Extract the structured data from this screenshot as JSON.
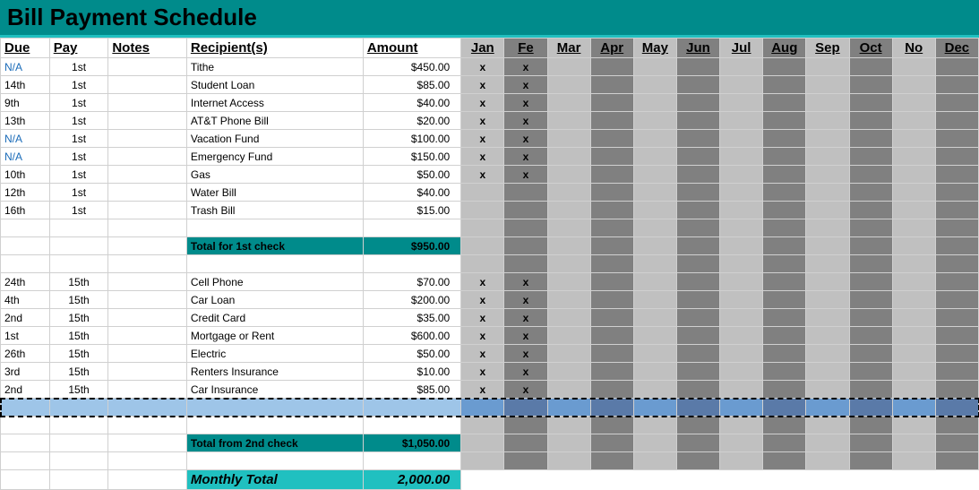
{
  "title": "Bill Payment Schedule",
  "colors": {
    "header_bg": "#008b8b",
    "header_accent": "#20c0c0",
    "month_light": "#c0c0c0",
    "month_dark": "#808080",
    "selected_left": "#9ec5e8",
    "selected_mon_light": "#6a9bd0",
    "selected_mon_dark": "#5a7aa8",
    "na_color": "#1a6bb8",
    "grand_bg": "#20c0c0"
  },
  "columns": {
    "due": "Due",
    "pay": "Pay",
    "notes": "Notes",
    "recipients": "Recipient(s)",
    "amount": "Amount"
  },
  "months": [
    "Jan",
    "Fe",
    "Mar",
    "Apr",
    "May",
    "Jun",
    "Jul",
    "Aug",
    "Sep",
    "Oct",
    "No",
    "Dec"
  ],
  "month_dark_idx": [
    1,
    3,
    5,
    7,
    9,
    11
  ],
  "rows_a": [
    {
      "due": "N/A",
      "na": true,
      "pay": "1st",
      "recip": "Tithe",
      "amt": "$450.00",
      "m": [
        "x",
        "x"
      ]
    },
    {
      "due": "14th",
      "pay": "1st",
      "recip": "Student Loan",
      "amt": "$85.00",
      "m": [
        "x",
        "x"
      ]
    },
    {
      "due": "9th",
      "pay": "1st",
      "recip": "Internet Access",
      "amt": "$40.00",
      "m": [
        "x",
        "x"
      ]
    },
    {
      "due": "13th",
      "pay": "1st",
      "recip": "AT&T Phone Bill",
      "amt": "$20.00",
      "m": [
        "x",
        "x"
      ]
    },
    {
      "due": "N/A",
      "na": true,
      "pay": "1st",
      "recip": "Vacation Fund",
      "amt": "$100.00",
      "m": [
        "x",
        "x"
      ]
    },
    {
      "due": "N/A",
      "na": true,
      "pay": "1st",
      "recip": "Emergency Fund",
      "amt": "$150.00",
      "m": [
        "x",
        "x"
      ]
    },
    {
      "due": "10th",
      "pay": "1st",
      "recip": "Gas",
      "amt": "$50.00",
      "m": [
        "x",
        "x"
      ]
    },
    {
      "due": "12th",
      "pay": "1st",
      "recip": "Water Bill",
      "amt": "$40.00",
      "m": [
        "",
        ""
      ]
    },
    {
      "due": "16th",
      "pay": "1st",
      "recip": "Trash Bill",
      "amt": "$15.00",
      "m": [
        "",
        ""
      ]
    }
  ],
  "subtotal_a": {
    "label": "Total for 1st check",
    "amt": "$950.00"
  },
  "rows_b": [
    {
      "due": "24th",
      "pay": "15th",
      "recip": "Cell Phone",
      "amt": "$70.00",
      "m": [
        "x",
        "x"
      ]
    },
    {
      "due": "4th",
      "pay": "15th",
      "recip": "Car Loan",
      "amt": "$200.00",
      "m": [
        "x",
        "x"
      ]
    },
    {
      "due": "2nd",
      "pay": "15th",
      "recip": "Credit Card",
      "amt": "$35.00",
      "m": [
        "x",
        "x"
      ]
    },
    {
      "due": "1st",
      "pay": "15th",
      "recip": "Mortgage or Rent",
      "amt": "$600.00",
      "m": [
        "x",
        "x"
      ]
    },
    {
      "due": "26th",
      "pay": "15th",
      "recip": "Electric",
      "amt": "$50.00",
      "m": [
        "x",
        "x"
      ]
    },
    {
      "due": "3rd",
      "pay": "15th",
      "recip": "Renters Insurance",
      "amt": "$10.00",
      "m": [
        "x",
        "x"
      ]
    },
    {
      "due": "2nd",
      "pay": "15th",
      "recip": "Car Insurance",
      "amt": "$85.00",
      "m": [
        "x",
        "x"
      ]
    }
  ],
  "subtotal_b": {
    "label": "Total from 2nd check",
    "amt": "$1,050.00"
  },
  "grand": {
    "label": "Monthly Total",
    "amt": "2,000.00"
  }
}
